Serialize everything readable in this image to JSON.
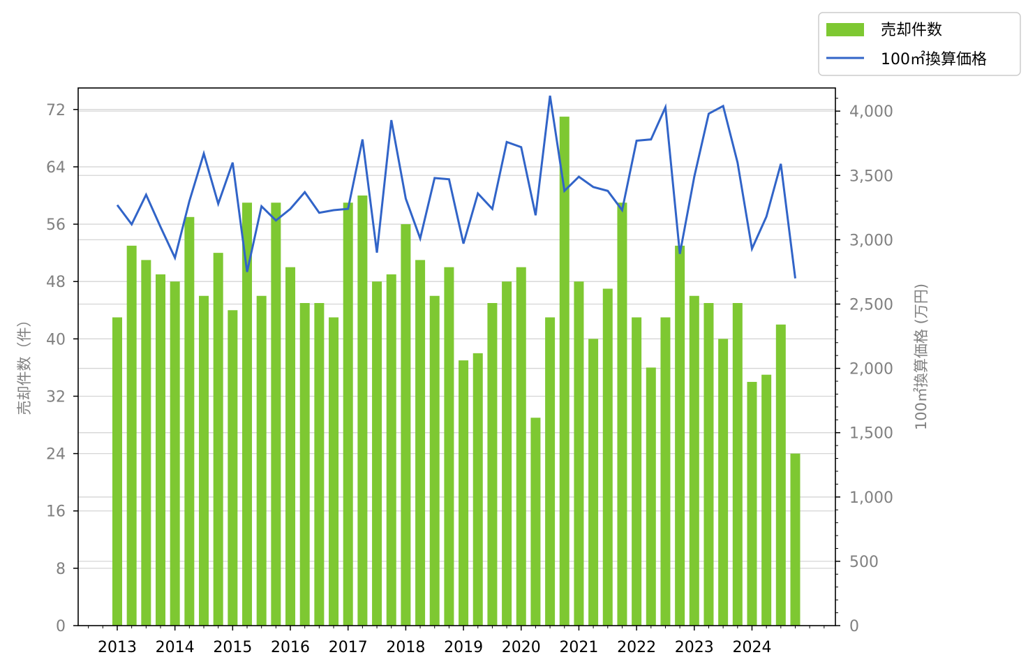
{
  "chart_data": {
    "type": "bar",
    "legend_placement": "top-right",
    "grid": true,
    "x_tick_labels": [
      "2013",
      "2014",
      "2015",
      "2016",
      "2017",
      "2018",
      "2019",
      "2020",
      "2021",
      "2022",
      "2023",
      "2024"
    ],
    "left_axis": {
      "label": "売却件数（件）",
      "ylim": [
        0,
        75
      ],
      "ticks": [
        0,
        8,
        16,
        24,
        32,
        40,
        48,
        56,
        64,
        72
      ]
    },
    "right_axis": {
      "label": "100㎡換算価格 (万円)",
      "ylim": [
        0,
        4180
      ],
      "ticks": [
        0,
        500,
        1000,
        1500,
        2000,
        2500,
        3000,
        3500,
        4000
      ],
      "tick_labels": [
        "0",
        "500",
        "1,000",
        "1,500",
        "2,000",
        "2,500",
        "3,000",
        "3,500",
        "4,000"
      ]
    },
    "series": [
      {
        "name": "売却件数",
        "type": "bar",
        "axis": "left",
        "color": "#7ec832",
        "values": [
          43,
          53,
          51,
          49,
          48,
          57,
          46,
          52,
          44,
          59,
          46,
          59,
          50,
          45,
          45,
          43,
          59,
          60,
          48,
          49,
          56,
          51,
          46,
          50,
          37,
          38,
          45,
          48,
          50,
          29,
          43,
          71,
          48,
          40,
          47,
          59,
          43,
          36,
          43,
          53,
          46,
          45,
          40,
          45,
          34,
          35,
          42,
          24
        ]
      },
      {
        "name": "100㎡換算価格",
        "type": "line",
        "axis": "right",
        "color": "#3164c8",
        "values": [
          3270,
          3120,
          3350,
          3100,
          2860,
          3300,
          3670,
          3280,
          3600,
          2750,
          3260,
          3150,
          3240,
          3370,
          3210,
          3230,
          3240,
          3780,
          2900,
          3930,
          3320,
          3010,
          3480,
          3470,
          2970,
          3360,
          3240,
          3760,
          3720,
          3190,
          4120,
          3380,
          3490,
          3410,
          3380,
          3230,
          3770,
          3780,
          4030,
          2890,
          3490,
          3980,
          4040,
          3600,
          2930,
          3180,
          3590,
          2700
        ]
      }
    ]
  }
}
